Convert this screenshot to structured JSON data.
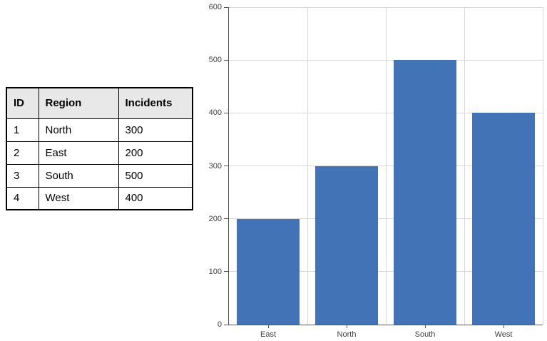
{
  "table": {
    "headers": [
      "ID",
      "Region",
      "Incidents"
    ],
    "rows": [
      [
        "1",
        "North",
        "300"
      ],
      [
        "2",
        "East",
        "200"
      ],
      [
        "3",
        "South",
        "500"
      ],
      [
        "4",
        "West",
        "400"
      ]
    ]
  },
  "chart_data": {
    "type": "bar",
    "categories": [
      "East",
      "North",
      "South",
      "West"
    ],
    "values": [
      200,
      300,
      500,
      400
    ],
    "title": "",
    "xlabel": "",
    "ylabel": "",
    "ylim": [
      0,
      600
    ],
    "yticks": [
      0,
      100,
      200,
      300,
      400,
      500,
      600
    ],
    "grid": true,
    "legend_position": "none",
    "bar_color": "#4273B7",
    "gridline_color": "#D9D9D9",
    "axis_color": "#595959",
    "tick_label_color": "#404040"
  },
  "colors": {
    "background": "#FFFFFF",
    "table_header_bg": "#E9E8E8",
    "table_border": "#000000"
  }
}
